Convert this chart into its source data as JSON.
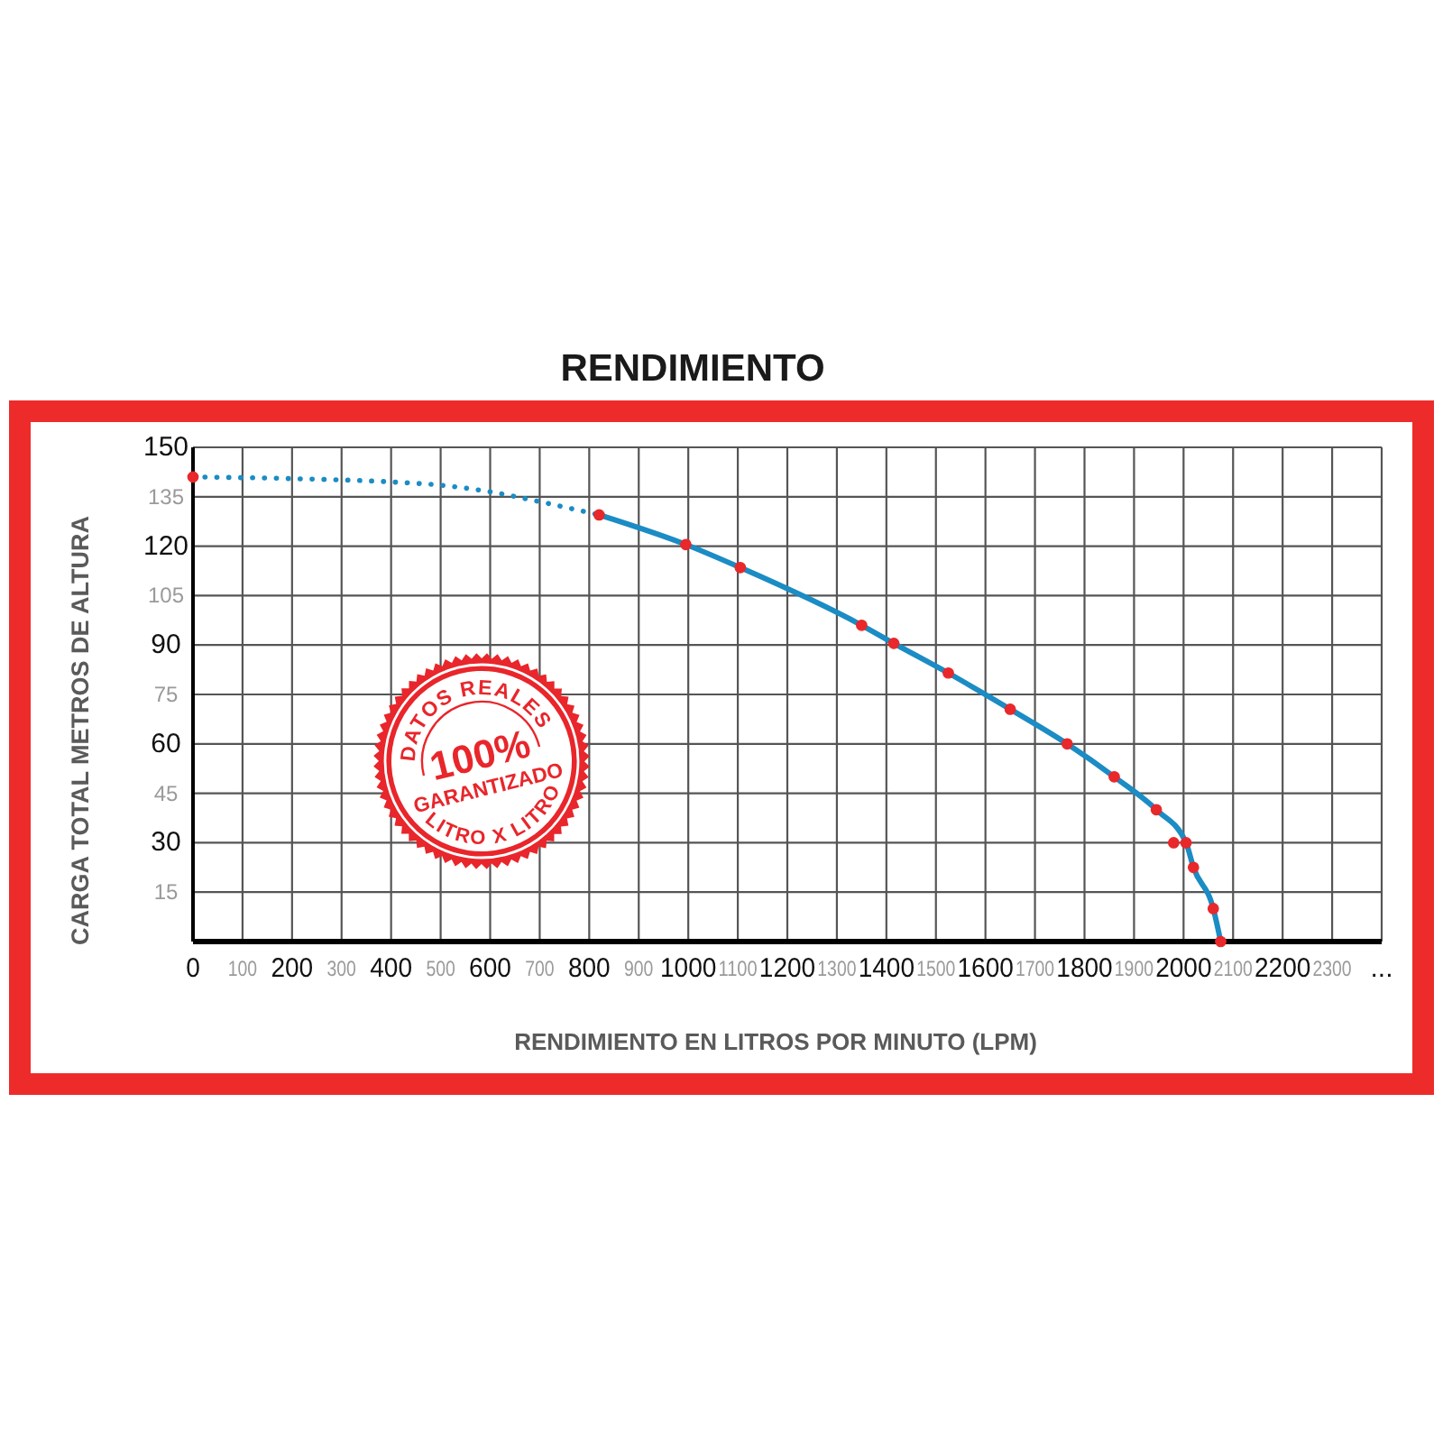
{
  "chart_data": {
    "type": "line",
    "title": "RENDIMIENTO",
    "xlabel": "RENDIMIENTO EN LITROS POR MINUTO (LPM)",
    "ylabel": "CARGA TOTAL METROS DE ALTURA",
    "annotations": [
      "DATOS REALES",
      "100%",
      "GARANTIZADO",
      "LITRO X LITRO"
    ],
    "xlim": [
      0,
      2400
    ],
    "ylim": [
      0,
      150
    ],
    "xticks": [
      0,
      100,
      200,
      300,
      400,
      500,
      600,
      700,
      800,
      900,
      1000,
      1100,
      1200,
      1300,
      1400,
      1500,
      1600,
      1700,
      1800,
      1900,
      2000,
      2100,
      2200,
      2300,
      {
        "value": 2400,
        "label": "..."
      }
    ],
    "yticks": [
      15,
      30,
      45,
      60,
      75,
      90,
      105,
      120,
      135,
      150
    ],
    "grid": true,
    "series": [
      {
        "type": "line",
        "color": "#1b8cc4",
        "line_style": "dotted",
        "marker": "none",
        "x": [
          0,
          200,
          400,
          500,
          600,
          700,
          820
        ],
        "values": [
          141,
          140.5,
          139.5,
          138.5,
          136.5,
          133.5,
          129.5
        ]
      },
      {
        "type": "line",
        "color": "#1b8cc4",
        "line_style": "solid",
        "marker": "none",
        "x": [
          820,
          995,
          1105,
          1350,
          1415,
          1525,
          1650,
          1765,
          1860,
          1945,
          2005,
          2020,
          2060,
          2075
        ],
        "values": [
          129.5,
          120.5,
          113.5,
          96,
          90.5,
          81.5,
          70.5,
          60,
          50,
          40,
          30,
          22.5,
          10,
          0
        ]
      },
      {
        "type": "scatter",
        "color": "#e8282b",
        "marker": "circle",
        "x": [
          0,
          820,
          995,
          1105,
          1350,
          1415,
          1525,
          1650,
          1765,
          1860,
          1945,
          1980,
          2005,
          2020,
          2060,
          2075
        ],
        "values": [
          141,
          129.5,
          120.5,
          113.5,
          96,
          90.5,
          81.5,
          70.5,
          60,
          50,
          40,
          30,
          30,
          22.5,
          10,
          0
        ]
      }
    ]
  }
}
